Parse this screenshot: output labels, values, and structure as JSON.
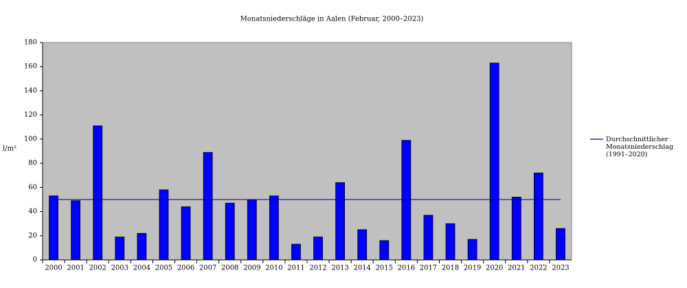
{
  "chart_data": {
    "type": "bar",
    "title": "Monatsniederschläge in Aalen (Februar, 2000–2023)",
    "y_label": "l/m²",
    "categories": [
      "2000",
      "2001",
      "2002",
      "2003",
      "2004",
      "2005",
      "2006",
      "2007",
      "2008",
      "2009",
      "2010",
      "2011",
      "2012",
      "2013",
      "2014",
      "2015",
      "2016",
      "2017",
      "2018",
      "2019",
      "2020",
      "2021",
      "2022",
      "2023"
    ],
    "values": [
      53,
      49,
      111,
      19,
      22,
      58,
      44,
      89,
      47,
      50,
      53,
      13,
      19,
      64,
      25,
      16,
      99,
      37,
      30,
      17,
      163,
      52,
      72,
      26
    ],
    "color": "#0000ff",
    "background": "#c0c0c0",
    "reference_line": {
      "name": "Durchschnittlicher Monatsniederschlag (1991–2020)",
      "value": 50,
      "color": "#000080"
    },
    "ylim": [
      0,
      180
    ],
    "yticks": [
      0,
      20,
      40,
      60,
      80,
      100,
      120,
      140,
      160,
      180
    ]
  }
}
